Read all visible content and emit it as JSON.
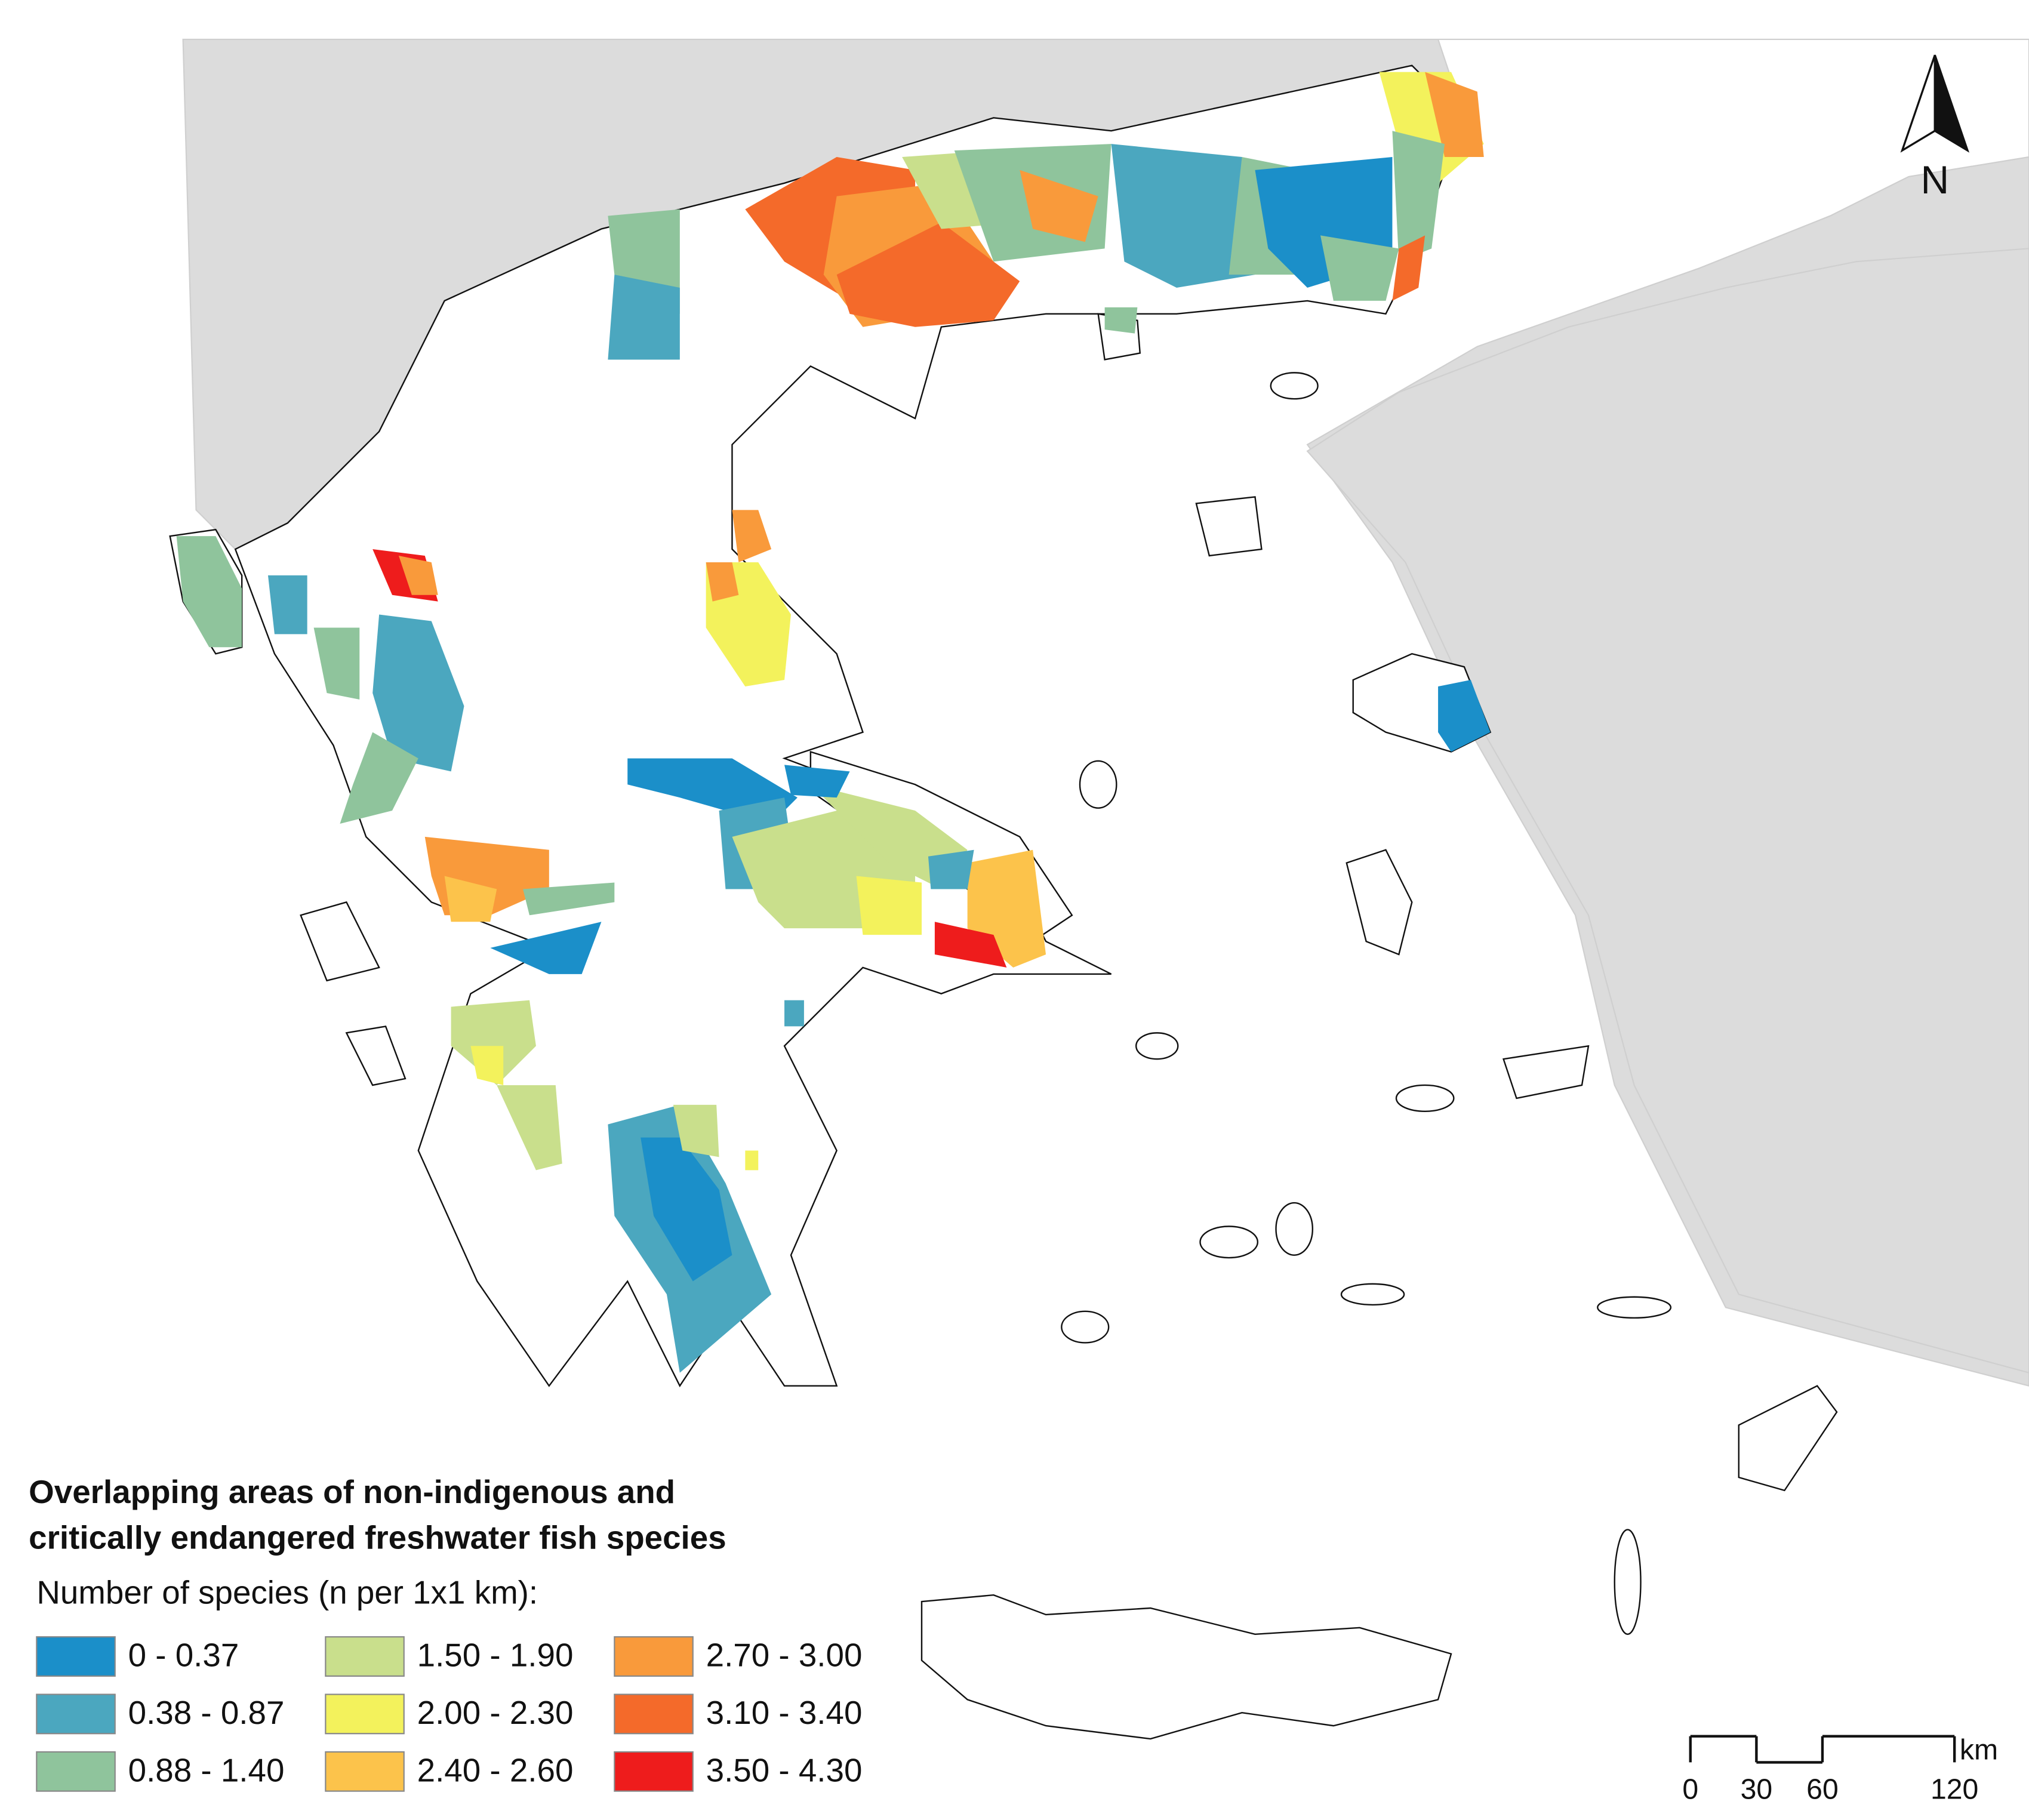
{
  "title": [
    "Overlapping areas of non-indigenous and",
    "critically endangered freshwater fish species"
  ],
  "subtitle": "Number of species (n per 1x1 km):",
  "legend": [
    {
      "label": "0 - 0.37",
      "color": "#1b8fc9"
    },
    {
      "label": "0.38 - 0.87",
      "color": "#4ba7bf"
    },
    {
      "label": "0.88 - 1.40",
      "color": "#8fc49c"
    },
    {
      "label": "1.50 - 1.90",
      "color": "#c9df8c"
    },
    {
      "label": "2.00 - 2.30",
      "color": "#f3f25c"
    },
    {
      "label": "2.40 - 2.60",
      "color": "#fcc34b"
    },
    {
      "label": "2.70 - 3.00",
      "color": "#f99a3b"
    },
    {
      "label": "3.10 - 3.40",
      "color": "#f46a2a"
    },
    {
      "label": "3.50 - 4.30",
      "color": "#ee1c1c"
    }
  ],
  "scale_bar": {
    "unit": "km",
    "ticks": [
      0,
      30,
      60,
      120
    ]
  },
  "north_label": "N"
}
